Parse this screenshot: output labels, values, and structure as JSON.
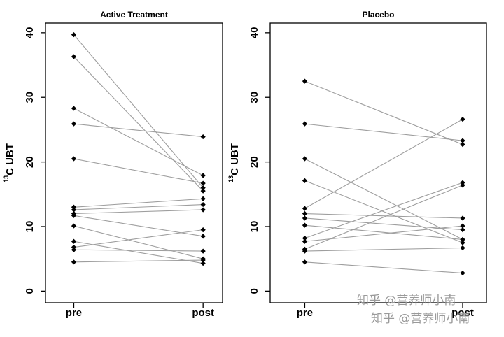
{
  "chart_data": [
    {
      "type": "slope",
      "title": "Active Treatment",
      "ylabel_superscript": "13",
      "ylabel": "C UBT",
      "categories": [
        "pre",
        "post"
      ],
      "color": "#9e9e9e",
      "marker_color": "#000000",
      "ylim": [
        -1.8,
        41.5
      ],
      "yticks": [
        0,
        10,
        20,
        30,
        40
      ],
      "series": [
        {
          "values": [
            39.7,
            16.0
          ]
        },
        {
          "values": [
            36.3,
            15.5
          ]
        },
        {
          "values": [
            28.3,
            17.9
          ]
        },
        {
          "values": [
            25.9,
            23.9
          ]
        },
        {
          "values": [
            20.5,
            16.7
          ]
        },
        {
          "values": [
            13.0,
            14.3
          ]
        },
        {
          "values": [
            12.6,
            13.4
          ]
        },
        {
          "values": [
            12.0,
            12.6
          ]
        },
        {
          "values": [
            11.7,
            8.5
          ]
        },
        {
          "values": [
            10.1,
            5.0
          ]
        },
        {
          "values": [
            7.7,
            4.3
          ]
        },
        {
          "values": [
            6.8,
            9.5
          ]
        },
        {
          "values": [
            6.4,
            6.2
          ]
        },
        {
          "values": [
            4.5,
            4.8
          ]
        }
      ]
    },
    {
      "type": "slope",
      "title": "Placebo",
      "ylabel_superscript": "13",
      "ylabel": "C UBT",
      "categories": [
        "pre",
        "post"
      ],
      "color": "#9e9e9e",
      "marker_color": "#000000",
      "ylim": [
        -1.8,
        41.5
      ],
      "yticks": [
        0,
        10,
        20,
        30,
        40
      ],
      "series": [
        {
          "values": [
            32.5,
            22.7
          ]
        },
        {
          "values": [
            25.9,
            23.3
          ]
        },
        {
          "values": [
            20.5,
            8.0
          ]
        },
        {
          "values": [
            17.1,
            7.5
          ]
        },
        {
          "values": [
            12.8,
            26.6
          ]
        },
        {
          "values": [
            12.0,
            11.3
          ]
        },
        {
          "values": [
            11.3,
            9.5
          ]
        },
        {
          "values": [
            10.2,
            8.0
          ]
        },
        {
          "values": [
            8.2,
            16.8
          ]
        },
        {
          "values": [
            7.7,
            10.1
          ]
        },
        {
          "values": [
            6.5,
            16.4
          ]
        },
        {
          "values": [
            6.2,
            6.7
          ]
        },
        {
          "values": [
            4.5,
            2.8
          ]
        }
      ]
    }
  ],
  "watermark": "知乎 @营养师小南"
}
